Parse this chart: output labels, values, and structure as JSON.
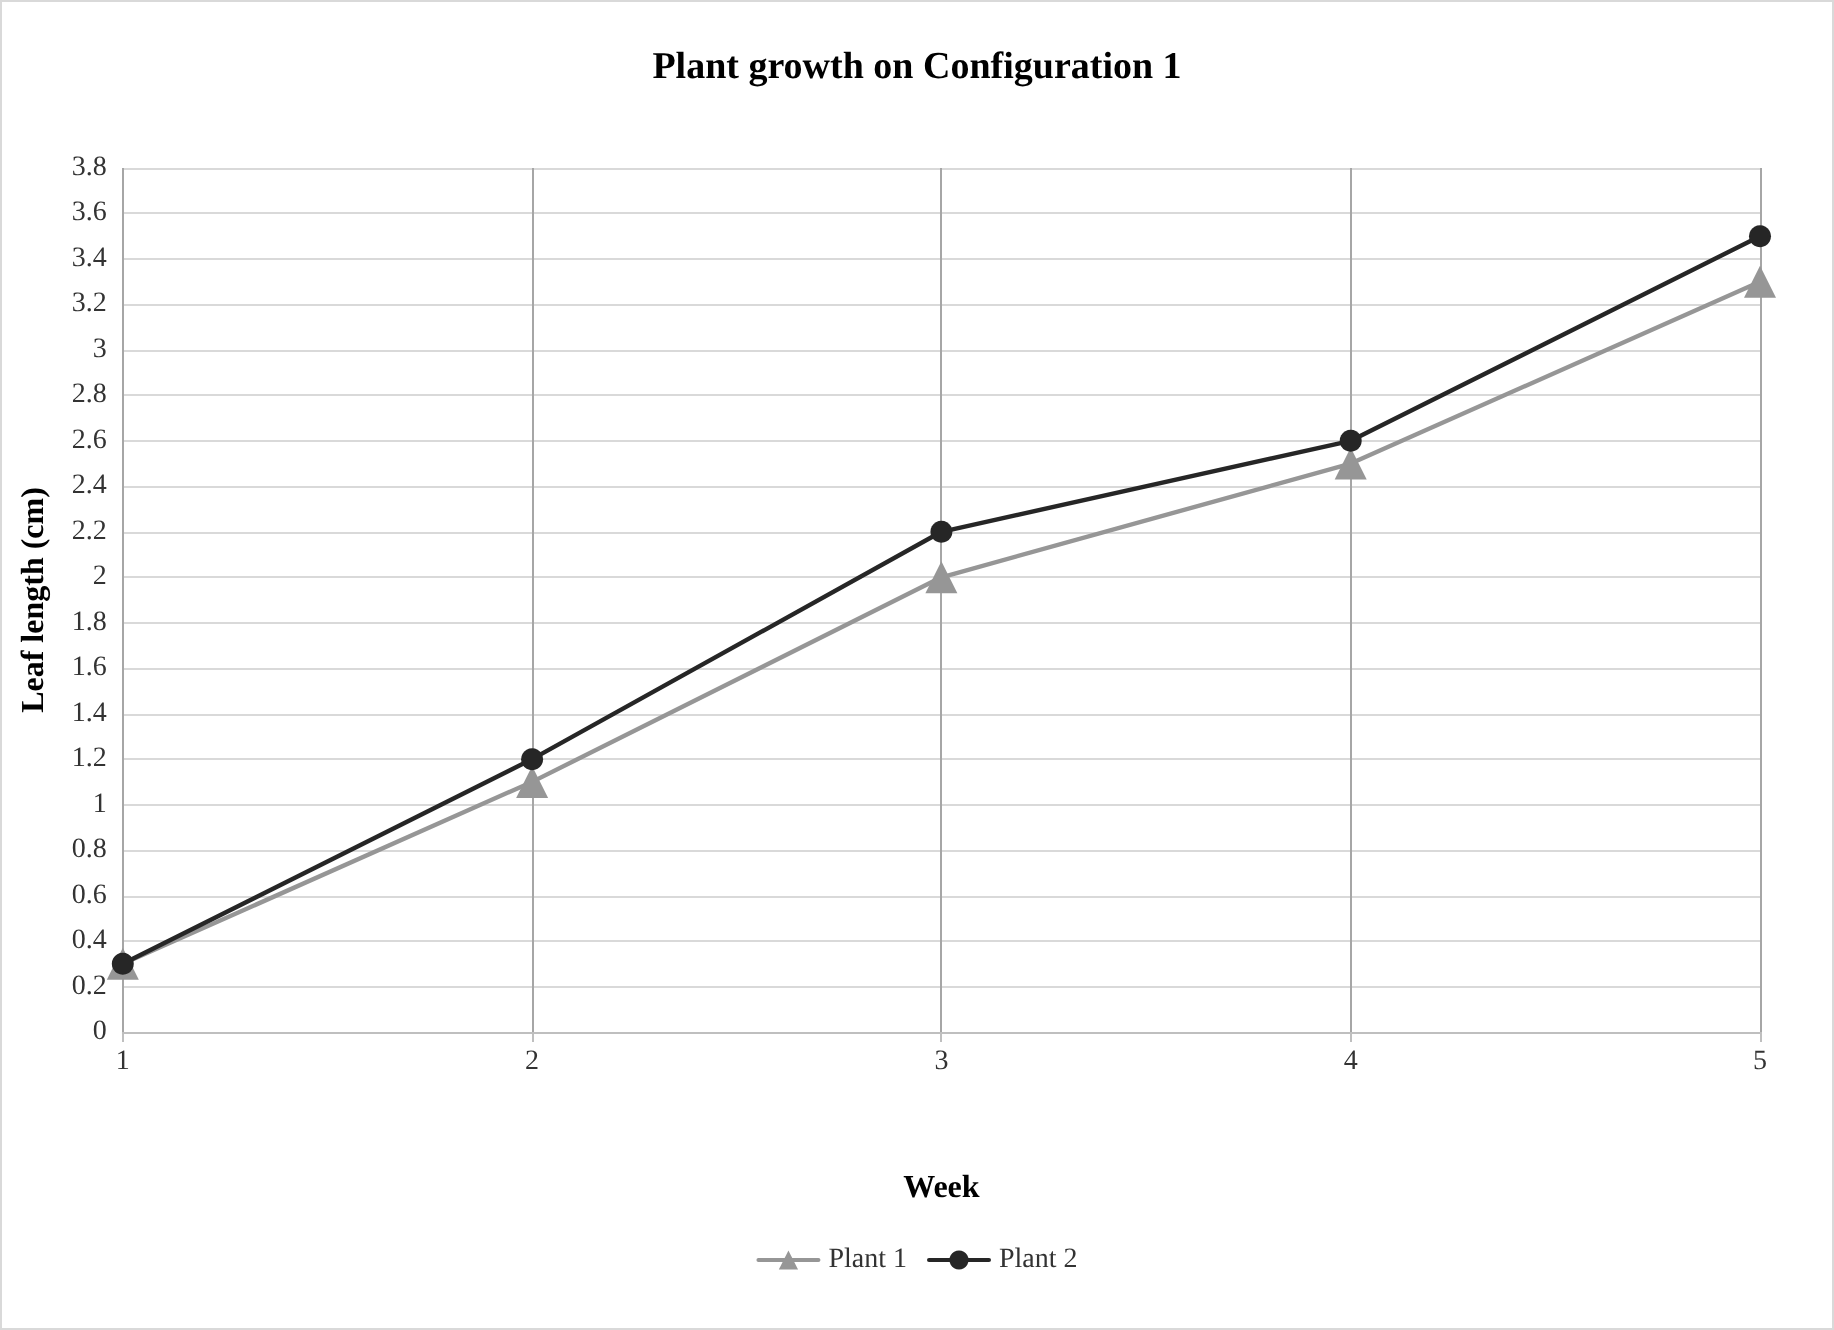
{
  "chart_data": {
    "type": "line",
    "title": "Plant growth on Configuration 1",
    "xlabel": "Week",
    "ylabel": "Leaf length (cm)",
    "x": [
      1,
      2,
      3,
      4,
      5
    ],
    "series": [
      {
        "name": "Plant 1",
        "color": "#969696",
        "marker": "triangle",
        "values": [
          0.3,
          1.1,
          2.0,
          2.5,
          3.3
        ]
      },
      {
        "name": "Plant 2",
        "color": "#262626",
        "marker": "circle",
        "values": [
          0.3,
          1.2,
          2.2,
          2.6,
          3.5
        ]
      }
    ],
    "xlim": [
      1,
      5
    ],
    "xticks": [
      1,
      2,
      3,
      4,
      5
    ],
    "ylim": [
      0,
      3.8
    ],
    "yticks": [
      0,
      0.2,
      0.4,
      0.6,
      0.8,
      1,
      1.2,
      1.4,
      1.6,
      1.8,
      2,
      2.2,
      2.4,
      2.6,
      2.8,
      3,
      3.2,
      3.4,
      3.6,
      3.8
    ],
    "grid": true,
    "legend": "bottom",
    "line_style": "solid"
  }
}
